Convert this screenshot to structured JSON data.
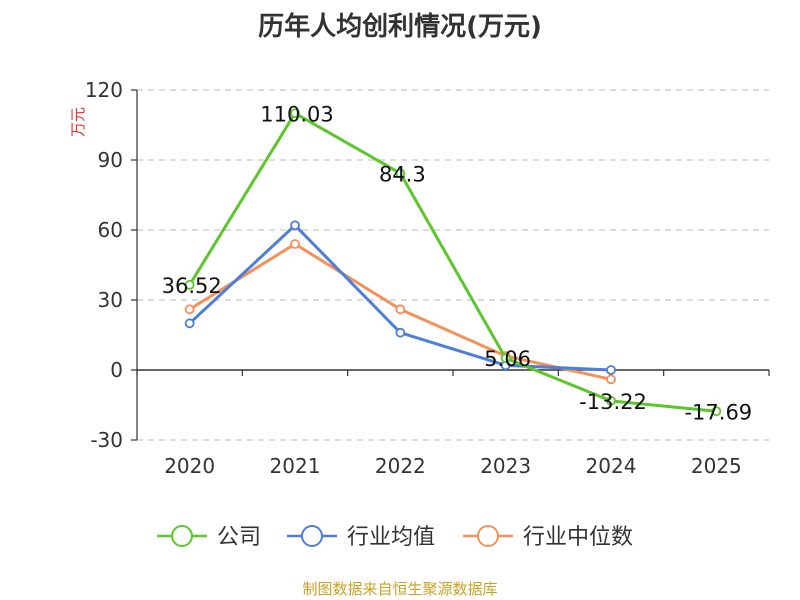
{
  "chart_data": {
    "type": "line",
    "title": "历年人均创利情况(万元)",
    "ylabel": "万元",
    "categories": [
      "2020",
      "2021",
      "2022",
      "2023",
      "2024",
      "2025"
    ],
    "ylim": [
      -30,
      120
    ],
    "yticks": [
      -30,
      0,
      30,
      60,
      90,
      120
    ],
    "grid": true,
    "legend_placement": "bottom",
    "series": [
      {
        "name": "公司",
        "color": "#5cc72a",
        "values": [
          36.52,
          110.03,
          84.3,
          5.06,
          -13.22,
          -17.69
        ],
        "labels": [
          "36.52",
          "110.03",
          "84.3",
          "5.06",
          "-13.22",
          "-17.69"
        ]
      },
      {
        "name": "行业均值",
        "color": "#4d7fd9",
        "values": [
          20,
          62,
          16,
          2,
          0,
          null
        ]
      },
      {
        "name": "行业中位数",
        "color": "#f4905a",
        "values": [
          26,
          54,
          26,
          6,
          -4,
          null
        ]
      }
    ]
  },
  "footer": "制图数据来自恒生聚源数据库"
}
